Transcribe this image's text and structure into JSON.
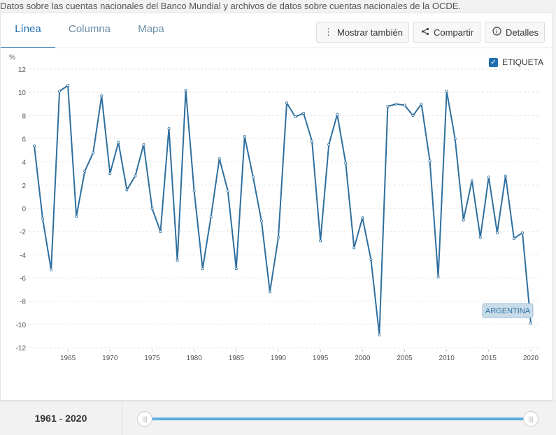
{
  "source_text": "Datos sobre las cuentas nacionales del Banco Mundial y archivos de datos sobre cuentas nacionales de la OCDE.",
  "tabs": [
    {
      "label": "Línea"
    },
    {
      "label": "Columna"
    },
    {
      "label": "Mapa"
    }
  ],
  "toolbar": {
    "show_also": "Mostrar también",
    "share": "Compartir",
    "details": "Detalles"
  },
  "label_checkbox": {
    "label": "ETIQUETA",
    "checked": true
  },
  "range": {
    "start": "1961",
    "sep": "-",
    "end": "2020"
  },
  "colors": {
    "line": "#2e6f9e",
    "accent": "#1f6fb0",
    "slider": "#5aaee0"
  },
  "chart_data": {
    "type": "line",
    "ylabel": "%",
    "ylim": [
      -12,
      12
    ],
    "yticks": [
      12,
      10,
      8,
      6,
      4,
      2,
      0,
      -2,
      -4,
      -6,
      -8,
      -10,
      -12
    ],
    "xlim": [
      1961,
      2020
    ],
    "xticks": [
      1965,
      1970,
      1975,
      1980,
      1985,
      1990,
      1995,
      2000,
      2005,
      2010,
      2015,
      2020
    ],
    "grid": true,
    "series": [
      {
        "name": "ARGENTINA",
        "x": [
          1961,
          1962,
          1963,
          1964,
          1965,
          1966,
          1967,
          1968,
          1969,
          1970,
          1971,
          1972,
          1973,
          1974,
          1975,
          1976,
          1977,
          1978,
          1979,
          1980,
          1981,
          1982,
          1983,
          1984,
          1985,
          1986,
          1987,
          1988,
          1989,
          1990,
          1991,
          1992,
          1993,
          1994,
          1995,
          1996,
          1997,
          1998,
          1999,
          2000,
          2001,
          2002,
          2003,
          2004,
          2005,
          2006,
          2007,
          2008,
          2009,
          2010,
          2011,
          2012,
          2013,
          2014,
          2015,
          2016,
          2017,
          2018,
          2019,
          2020
        ],
        "values": [
          5.4,
          -0.9,
          -5.3,
          10.1,
          10.6,
          -0.7,
          3.2,
          4.8,
          9.7,
          3.0,
          5.7,
          1.6,
          2.8,
          5.5,
          0.0,
          -2.0,
          6.9,
          -4.5,
          10.2,
          1.5,
          -5.2,
          -0.7,
          4.3,
          1.5,
          -5.2,
          6.2,
          2.7,
          -1.1,
          -7.2,
          -2.5,
          9.1,
          7.9,
          8.2,
          5.8,
          -2.8,
          5.5,
          8.1,
          3.9,
          -3.4,
          -0.8,
          -4.4,
          -10.9,
          8.8,
          9.0,
          8.9,
          8.0,
          9.0,
          4.1,
          -5.9,
          10.1,
          6.0,
          -1.0,
          2.4,
          -2.5,
          2.7,
          -2.1,
          2.8,
          -2.6,
          -2.1,
          -9.9
        ]
      }
    ],
    "end_label": "ARGENTINA"
  }
}
